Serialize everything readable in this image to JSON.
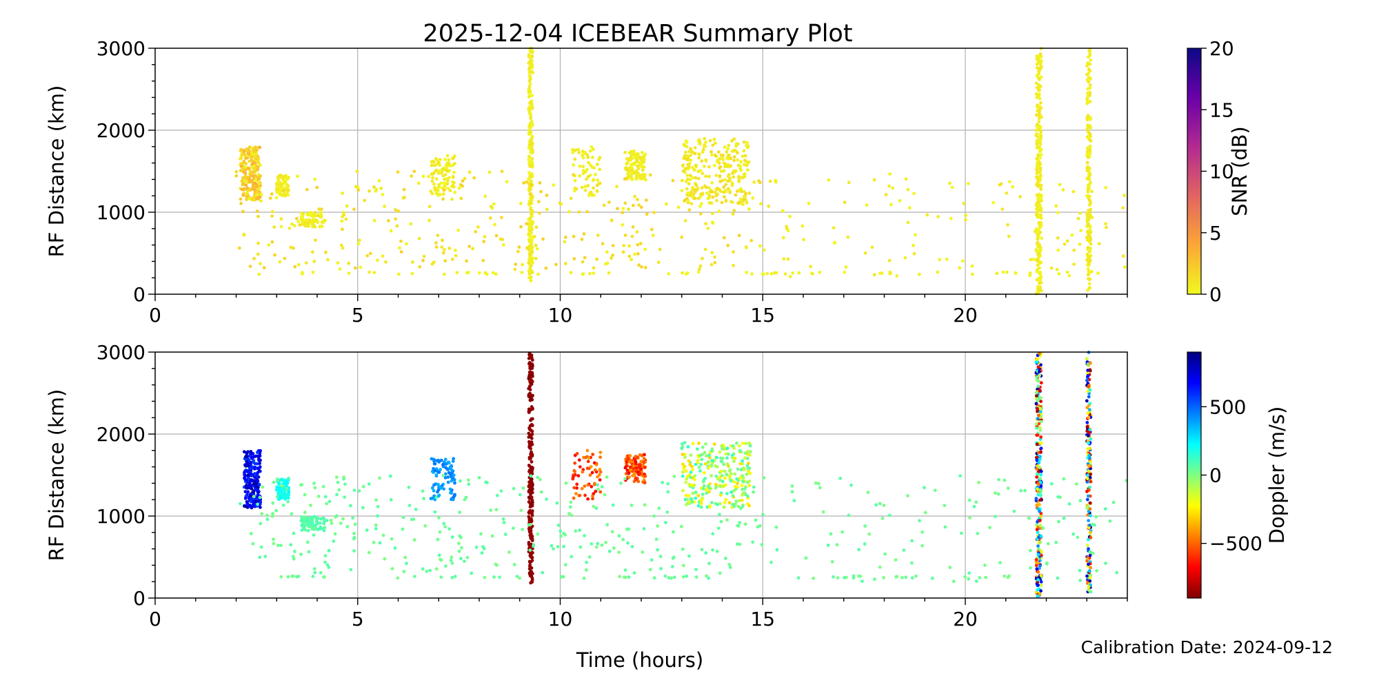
{
  "figure": {
    "title": "2025-12-04 ICEBEAR Summary Plot",
    "xlabel": "Time (hours)",
    "calibration_note": "Calibration Date: 2024-09-12"
  },
  "chart_data": [
    {
      "type": "scatter",
      "name": "snr-panel",
      "ylabel": "RF Distance (km)",
      "xlim": [
        0,
        24
      ],
      "ylim": [
        0,
        3000
      ],
      "xticks": [
        0,
        5,
        10,
        15,
        20
      ],
      "yticks": [
        0,
        1000,
        2000,
        3000
      ],
      "grid": true,
      "colorbar": {
        "label": "SNR (dB)",
        "range": [
          0,
          20
        ],
        "ticks": [
          0,
          5,
          10,
          15,
          20
        ],
        "colormap": "plasma_r",
        "stops": [
          "#f0f921",
          "#fca636",
          "#e16462",
          "#b12a90",
          "#6a00a8",
          "#0d0887"
        ]
      },
      "clusters": [
        {
          "x": [
            2.1,
            2.6
          ],
          "y": [
            1150,
            1800
          ],
          "n": 220,
          "value": [
            0,
            4
          ],
          "ref": "#f2c01e"
        },
        {
          "x": [
            3.0,
            3.3
          ],
          "y": [
            1200,
            1450
          ],
          "n": 80,
          "value": [
            0,
            1
          ],
          "ref": "#f0d020"
        },
        {
          "x": [
            3.6,
            4.2
          ],
          "y": [
            820,
            1000
          ],
          "n": 70,
          "value": [
            0,
            1
          ],
          "ref": "#f0d020"
        },
        {
          "x": [
            6.8,
            7.4
          ],
          "y": [
            1200,
            1700
          ],
          "n": 90,
          "value": [
            0,
            1
          ],
          "ref": "#f0d020"
        },
        {
          "x": [
            9.22,
            9.32
          ],
          "y": [
            150,
            3000
          ],
          "n": 260,
          "value": [
            0,
            1
          ],
          "ref": "#f0d020"
        },
        {
          "x": [
            10.3,
            11.0
          ],
          "y": [
            1200,
            1800
          ],
          "n": 60,
          "value": [
            0,
            1
          ],
          "ref": "#f0d020"
        },
        {
          "x": [
            11.6,
            12.1
          ],
          "y": [
            1400,
            1750
          ],
          "n": 110,
          "value": [
            0,
            1
          ],
          "ref": "#f0d020"
        },
        {
          "x": [
            13.0,
            14.7
          ],
          "y": [
            1100,
            1900
          ],
          "n": 260,
          "value": [
            0,
            1.5
          ],
          "ref": "#f0d020"
        },
        {
          "x": [
            21.75,
            21.88
          ],
          "y": [
            0,
            3000
          ],
          "n": 260,
          "value": [
            0,
            1
          ],
          "ref": "#f0d020"
        },
        {
          "x": [
            23.0,
            23.1
          ],
          "y": [
            0,
            3000
          ],
          "n": 180,
          "value": [
            0,
            1
          ],
          "ref": "#f0d020"
        },
        {
          "x": [
            2.0,
            15.0
          ],
          "y": [
            300,
            1500
          ],
          "n": 330,
          "value": [
            0,
            2
          ],
          "ref": "#f0d020"
        },
        {
          "x": [
            15.0,
            24.0
          ],
          "y": [
            200,
            1500
          ],
          "n": 110,
          "value": [
            0,
            1
          ],
          "ref": "#f0d020"
        },
        {
          "x": [
            2.5,
            23.5
          ],
          "y": [
            240,
            270
          ],
          "n": 60,
          "value": [
            0,
            0.5
          ],
          "ref": "#f0d020"
        }
      ]
    },
    {
      "type": "scatter",
      "name": "doppler-panel",
      "ylabel": "RF Distance (km)",
      "xlim": [
        0,
        24
      ],
      "ylim": [
        0,
        3000
      ],
      "xticks": [
        0,
        5,
        10,
        15,
        20
      ],
      "yticks": [
        0,
        1000,
        2000,
        3000
      ],
      "grid": true,
      "colorbar": {
        "label": "Doppler (m/s)",
        "range": [
          -900,
          900
        ],
        "ticks": [
          -500,
          0,
          500
        ],
        "tick_labels": [
          "−500",
          "0",
          "500"
        ],
        "colormap": "jet_r",
        "stops": [
          "#7f0000",
          "#ff0000",
          "#ff8000",
          "#ffff00",
          "#80ff80",
          "#00ffff",
          "#0080ff",
          "#0000ff",
          "#00007f"
        ]
      },
      "clusters": [
        {
          "x": [
            2.2,
            2.6
          ],
          "y": [
            1100,
            1800
          ],
          "n": 220,
          "value": [
            550,
            850
          ],
          "ref": "#0040ff"
        },
        {
          "x": [
            3.0,
            3.3
          ],
          "y": [
            1200,
            1450
          ],
          "n": 80,
          "value": [
            150,
            250
          ],
          "ref": "#30ffd0"
        },
        {
          "x": [
            3.6,
            4.2
          ],
          "y": [
            820,
            1000
          ],
          "n": 70,
          "value": [
            40,
            100
          ],
          "ref": "#50ff90"
        },
        {
          "x": [
            6.8,
            7.4
          ],
          "y": [
            1200,
            1700
          ],
          "n": 90,
          "value": [
            350,
            480
          ],
          "ref": "#00d0ff"
        },
        {
          "x": [
            9.22,
            9.32
          ],
          "y": [
            150,
            3000
          ],
          "n": 260,
          "value": [
            -900,
            -850
          ],
          "ref": "#7f0000"
        },
        {
          "x": [
            10.3,
            11.0
          ],
          "y": [
            1200,
            1800
          ],
          "n": 60,
          "value": [
            -700,
            -400
          ],
          "ref": "#ff8000"
        },
        {
          "x": [
            11.6,
            12.1
          ],
          "y": [
            1400,
            1750
          ],
          "n": 110,
          "value": [
            -750,
            -400
          ],
          "ref": "#ff4000"
        },
        {
          "x": [
            13.0,
            14.7
          ],
          "y": [
            1100,
            1900
          ],
          "n": 260,
          "value": [
            -300,
            150
          ],
          "ref": "#d0ff30"
        },
        {
          "x": [
            21.75,
            21.88
          ],
          "y": [
            0,
            3000
          ],
          "n": 260,
          "value": [
            -900,
            900
          ],
          "ref": "#80ff80"
        },
        {
          "x": [
            23.0,
            23.1
          ],
          "y": [
            0,
            3000
          ],
          "n": 180,
          "value": [
            -900,
            900
          ],
          "ref": "#80ff80"
        },
        {
          "x": [
            2.0,
            15.0
          ],
          "y": [
            300,
            1500
          ],
          "n": 330,
          "value": [
            0,
            80
          ],
          "ref": "#70ff80"
        },
        {
          "x": [
            15.0,
            24.0
          ],
          "y": [
            200,
            1500
          ],
          "n": 110,
          "value": [
            0,
            80
          ],
          "ref": "#70ff80"
        },
        {
          "x": [
            2.5,
            23.5
          ],
          "y": [
            240,
            270
          ],
          "n": 60,
          "value": [
            0,
            60
          ],
          "ref": "#70ff80"
        }
      ]
    }
  ]
}
